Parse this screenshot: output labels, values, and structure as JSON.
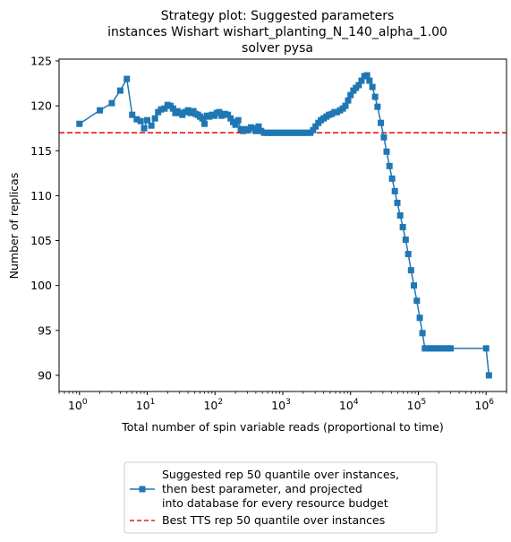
{
  "chart_data": {
    "type": "line",
    "title": [
      "Strategy plot: Suggested parameters",
      "instances Wishart wishart_planting_N_140_alpha_1.00",
      "solver pysa"
    ],
    "xlabel": "Total number of spin variable reads (proportional to time)",
    "ylabel": "Number of replicas",
    "xscale": "log",
    "xlim": [
      0.5,
      2000000
    ],
    "ylim": [
      88.2,
      125.2
    ],
    "x_ticks": [
      1,
      10,
      100,
      1000,
      10000,
      100000,
      1000000
    ],
    "x_tick_labels": [
      {
        "base": "10",
        "exp": "0"
      },
      {
        "base": "10",
        "exp": "1"
      },
      {
        "base": "10",
        "exp": "2"
      },
      {
        "base": "10",
        "exp": "3"
      },
      {
        "base": "10",
        "exp": "4"
      },
      {
        "base": "10",
        "exp": "5"
      },
      {
        "base": "10",
        "exp": "6"
      }
    ],
    "y_ticks": [
      90,
      95,
      100,
      105,
      110,
      115,
      120,
      125
    ],
    "y_tick_labels": [
      "90",
      "95",
      "100",
      "105",
      "110",
      "115",
      "120",
      "125"
    ],
    "grid": false,
    "legend_position": "below",
    "series": [
      {
        "name": "Suggested rep 50 quantile over instances,\n then best parameter, and projected\n into database for every resource budget",
        "color": "#1f77b4",
        "marker": "square",
        "points": [
          [
            1,
            118.0
          ],
          [
            2,
            119.5
          ],
          [
            3,
            120.3
          ],
          [
            4,
            121.7
          ],
          [
            5,
            123.0
          ],
          [
            6,
            119.0
          ],
          [
            7,
            118.5
          ],
          [
            8,
            118.3
          ],
          [
            9,
            117.5
          ],
          [
            10,
            118.4
          ],
          [
            11.5,
            117.8
          ],
          [
            13,
            118.6
          ],
          [
            14.5,
            119.3
          ],
          [
            16,
            119.6
          ],
          [
            18,
            119.7
          ],
          [
            20,
            120.1
          ],
          [
            22,
            120.0
          ],
          [
            24,
            119.7
          ],
          [
            26,
            119.2
          ],
          [
            28,
            119.4
          ],
          [
            30,
            119.2
          ],
          [
            33,
            119.0
          ],
          [
            36,
            119.3
          ],
          [
            40,
            119.5
          ],
          [
            44,
            119.2
          ],
          [
            48,
            119.4
          ],
          [
            52,
            119.1
          ],
          [
            56,
            119.0
          ],
          [
            60,
            118.8
          ],
          [
            65,
            118.6
          ],
          [
            70,
            118.0
          ],
          [
            76,
            118.9
          ],
          [
            82,
            118.8
          ],
          [
            90,
            119.0
          ],
          [
            98,
            118.9
          ],
          [
            106,
            119.2
          ],
          [
            115,
            119.3
          ],
          [
            125,
            118.9
          ],
          [
            140,
            119.1
          ],
          [
            155,
            119.0
          ],
          [
            170,
            118.6
          ],
          [
            185,
            118.2
          ],
          [
            200,
            117.9
          ],
          [
            220,
            118.4
          ],
          [
            240,
            117.4
          ],
          [
            260,
            117.2
          ],
          [
            285,
            117.4
          ],
          [
            310,
            117.3
          ],
          [
            340,
            117.6
          ],
          [
            370,
            117.5
          ],
          [
            400,
            117.2
          ],
          [
            440,
            117.7
          ],
          [
            480,
            117.2
          ],
          [
            530,
            117.0
          ],
          [
            580,
            117.0
          ],
          [
            640,
            117.0
          ],
          [
            700,
            117.0
          ],
          [
            770,
            117.0
          ],
          [
            840,
            117.0
          ],
          [
            920,
            117.0
          ],
          [
            1000,
            117.0
          ],
          [
            1100,
            117.0
          ],
          [
            1200,
            117.0
          ],
          [
            1320,
            117.0
          ],
          [
            1450,
            117.0
          ],
          [
            1600,
            117.0
          ],
          [
            1750,
            117.0
          ],
          [
            1900,
            117.0
          ],
          [
            2100,
            117.0
          ],
          [
            2300,
            117.0
          ],
          [
            2550,
            117.0
          ],
          [
            2800,
            117.3
          ],
          [
            3050,
            117.7
          ],
          [
            3350,
            118.1
          ],
          [
            3650,
            118.4
          ],
          [
            4000,
            118.6
          ],
          [
            4400,
            118.8
          ],
          [
            4800,
            119.0
          ],
          [
            5300,
            119.1
          ],
          [
            5800,
            119.3
          ],
          [
            6300,
            119.3
          ],
          [
            7000,
            119.5
          ],
          [
            7700,
            119.7
          ],
          [
            8400,
            120.0
          ],
          [
            9200,
            120.6
          ],
          [
            10000,
            121.2
          ],
          [
            11000,
            121.7
          ],
          [
            12000,
            122.0
          ],
          [
            13200,
            122.3
          ],
          [
            14500,
            122.8
          ],
          [
            16000,
            123.3
          ],
          [
            17500,
            123.4
          ],
          [
            19000,
            122.8
          ],
          [
            21000,
            122.1
          ],
          [
            23000,
            121.0
          ],
          [
            25000,
            119.9
          ],
          [
            28000,
            118.1
          ],
          [
            31000,
            116.5
          ],
          [
            34000,
            114.9
          ],
          [
            37500,
            113.3
          ],
          [
            41000,
            111.9
          ],
          [
            45000,
            110.5
          ],
          [
            49000,
            109.2
          ],
          [
            54000,
            107.8
          ],
          [
            59000,
            106.5
          ],
          [
            65000,
            105.1
          ],
          [
            71000,
            103.5
          ],
          [
            78000,
            101.7
          ],
          [
            86000,
            100.0
          ],
          [
            95000,
            98.3
          ],
          [
            105000,
            96.4
          ],
          [
            115000,
            94.7
          ],
          [
            125000,
            93.0
          ],
          [
            140000,
            93.0
          ],
          [
            155000,
            93.0
          ],
          [
            170000,
            93.0
          ],
          [
            190000,
            93.0
          ],
          [
            215000,
            93.0
          ],
          [
            240000,
            93.0
          ],
          [
            270000,
            93.0
          ],
          [
            300000,
            93.0
          ],
          [
            1000000,
            93.0
          ],
          [
            1100000,
            90.0
          ]
        ]
      },
      {
        "name": "Best TTS rep 50 quantile over instances",
        "color": "#e41a1c",
        "style": "dashed",
        "constant_y": 117.0
      }
    ]
  }
}
